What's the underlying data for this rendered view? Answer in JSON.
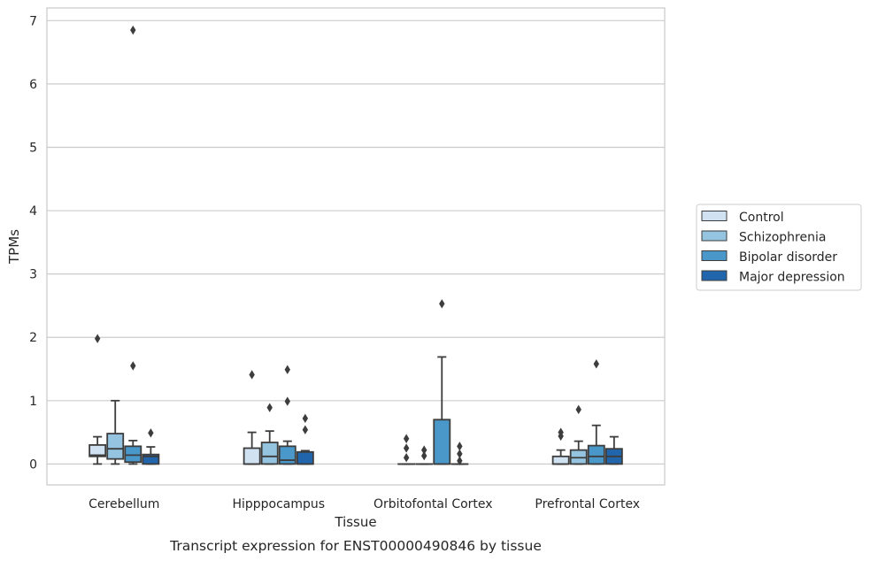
{
  "chart_data": {
    "type": "box",
    "title": "",
    "caption": "Transcript expression for ENST00000490846 by tissue",
    "xlabel": "Tissue",
    "ylabel": "TPMs",
    "ylim": [
      -0.33,
      7.2
    ],
    "yticks": [
      0,
      1,
      2,
      3,
      4,
      5,
      6,
      7
    ],
    "grid": "horizontal",
    "legend_position": "right",
    "categories": [
      "Cerebellum",
      "Hipppocampus",
      "Orbitofontal Cortex",
      "Prefrontal Cortex"
    ],
    "series": [
      {
        "name": "Control",
        "color": "#d0e1f2",
        "boxes": [
          {
            "whislo": 0.0,
            "q1": 0.12,
            "med": 0.14,
            "q3": 0.3,
            "whishi": 0.43,
            "fliers": [
              1.98
            ]
          },
          {
            "whislo": 0.0,
            "q1": 0.0,
            "med": 0.0,
            "q3": 0.25,
            "whishi": 0.5,
            "fliers": [
              1.41
            ]
          },
          {
            "whislo": 0.0,
            "q1": 0.0,
            "med": 0.0,
            "q3": 0.0,
            "whishi": 0.0,
            "fliers": [
              0.1,
              0.25,
              0.4
            ]
          },
          {
            "whislo": 0.0,
            "q1": 0.0,
            "med": 0.0,
            "q3": 0.12,
            "whishi": 0.22,
            "fliers": [
              0.44,
              0.5
            ]
          }
        ]
      },
      {
        "name": "Schizophrenia",
        "color": "#94c4df",
        "boxes": [
          {
            "whislo": 0.0,
            "q1": 0.08,
            "med": 0.24,
            "q3": 0.48,
            "whishi": 1.0,
            "fliers": []
          },
          {
            "whislo": 0.0,
            "q1": 0.0,
            "med": 0.12,
            "q3": 0.34,
            "whishi": 0.52,
            "fliers": [
              0.89
            ]
          },
          {
            "whislo": 0.0,
            "q1": 0.0,
            "med": 0.0,
            "q3": 0.0,
            "whishi": 0.0,
            "fliers": [
              0.13,
              0.22
            ]
          },
          {
            "whislo": 0.0,
            "q1": 0.0,
            "med": 0.1,
            "q3": 0.22,
            "whishi": 0.36,
            "fliers": [
              0.86
            ]
          }
        ]
      },
      {
        "name": "Bipolar disorder",
        "color": "#4a98c9",
        "boxes": [
          {
            "whislo": 0.0,
            "q1": 0.03,
            "med": 0.14,
            "q3": 0.28,
            "whishi": 0.37,
            "fliers": [
              1.55,
              6.85
            ]
          },
          {
            "whislo": 0.0,
            "q1": 0.0,
            "med": 0.06,
            "q3": 0.28,
            "whishi": 0.36,
            "fliers": [
              0.99,
              1.49
            ]
          },
          {
            "whislo": 0.0,
            "q1": 0.0,
            "med": 0.0,
            "q3": 0.7,
            "whishi": 1.69,
            "fliers": [
              2.53
            ]
          },
          {
            "whislo": 0.0,
            "q1": 0.0,
            "med": 0.12,
            "q3": 0.29,
            "whishi": 0.61,
            "fliers": [
              1.58
            ]
          }
        ]
      },
      {
        "name": "Major depression",
        "color": "#2166ac",
        "boxes": [
          {
            "whislo": 0.0,
            "q1": 0.0,
            "med": 0.12,
            "q3": 0.15,
            "whishi": 0.27,
            "fliers": [
              0.49
            ]
          },
          {
            "whislo": 0.0,
            "q1": 0.0,
            "med": 0.0,
            "q3": 0.19,
            "whishi": 0.21,
            "fliers": [
              0.54,
              0.72
            ]
          },
          {
            "whislo": 0.0,
            "q1": 0.0,
            "med": 0.0,
            "q3": 0.0,
            "whishi": 0.0,
            "fliers": [
              0.05,
              0.16,
              0.28
            ]
          },
          {
            "whislo": 0.0,
            "q1": 0.0,
            "med": 0.12,
            "q3": 0.24,
            "whishi": 0.43,
            "fliers": []
          }
        ]
      }
    ]
  }
}
